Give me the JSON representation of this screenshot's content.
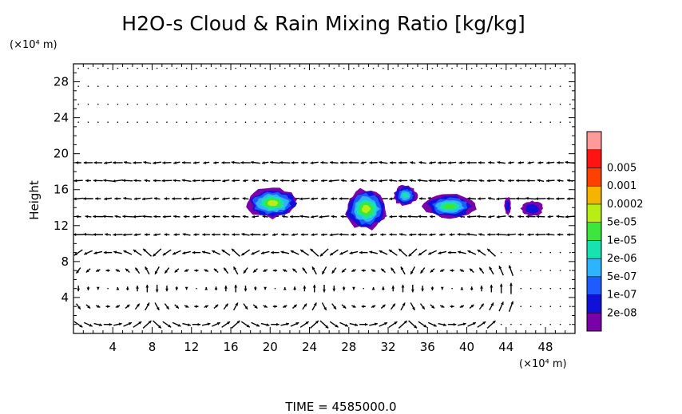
{
  "chart_data": {
    "type": "heatmap",
    "title": "H2O-s Cloud & Rain Mixing Ratio [kg/kg]",
    "ylabel": "Height",
    "xlabel": "",
    "x_unit": "(×10⁴ m)",
    "y_unit": "(×10⁴ m)",
    "xlim": [
      0,
      51
    ],
    "ylim": [
      0,
      30
    ],
    "x_ticks": [
      4,
      8,
      12,
      16,
      20,
      24,
      28,
      32,
      36,
      40,
      44,
      48
    ],
    "y_ticks": [
      4,
      8,
      12,
      16,
      20,
      24,
      28
    ],
    "grid": false,
    "legend": {
      "placement": "right",
      "levels": [
        "2e-08",
        "1e-07",
        "5e-07",
        "2e-06",
        "1e-05",
        "5e-05",
        "0.0002",
        "0.001",
        "0.005"
      ],
      "colors": [
        "#7a00a8",
        "#1010d8",
        "#1f5cff",
        "#2cb4ff",
        "#18e2b0",
        "#3ce63c",
        "#b8ee14",
        "#f5b400",
        "#ff4000",
        "#ff1414",
        "#ff9a9a"
      ]
    },
    "cloud_regions": [
      {
        "x": [
          17.5,
          23
        ],
        "y": [
          12.8,
          16.2
        ],
        "peak": "5e-05"
      },
      {
        "x": [
          27.5,
          32
        ],
        "y": [
          11.5,
          16.2
        ],
        "peak": "5e-05"
      },
      {
        "x": [
          32.5,
          35
        ],
        "y": [
          14.2,
          16.5
        ],
        "peak": "2e-06"
      },
      {
        "x": [
          35.5,
          41
        ],
        "y": [
          12.8,
          15.5
        ],
        "peak": "1e-05"
      },
      {
        "x": [
          43.8,
          44.5
        ],
        "y": [
          13.2,
          15.2
        ],
        "peak": "2e-07"
      },
      {
        "x": [
          45.5,
          47.8
        ],
        "y": [
          13,
          14.8
        ],
        "peak": "2e-07"
      }
    ],
    "wind_field": "arrows",
    "time_label": "TIME  =  4585000.0"
  }
}
